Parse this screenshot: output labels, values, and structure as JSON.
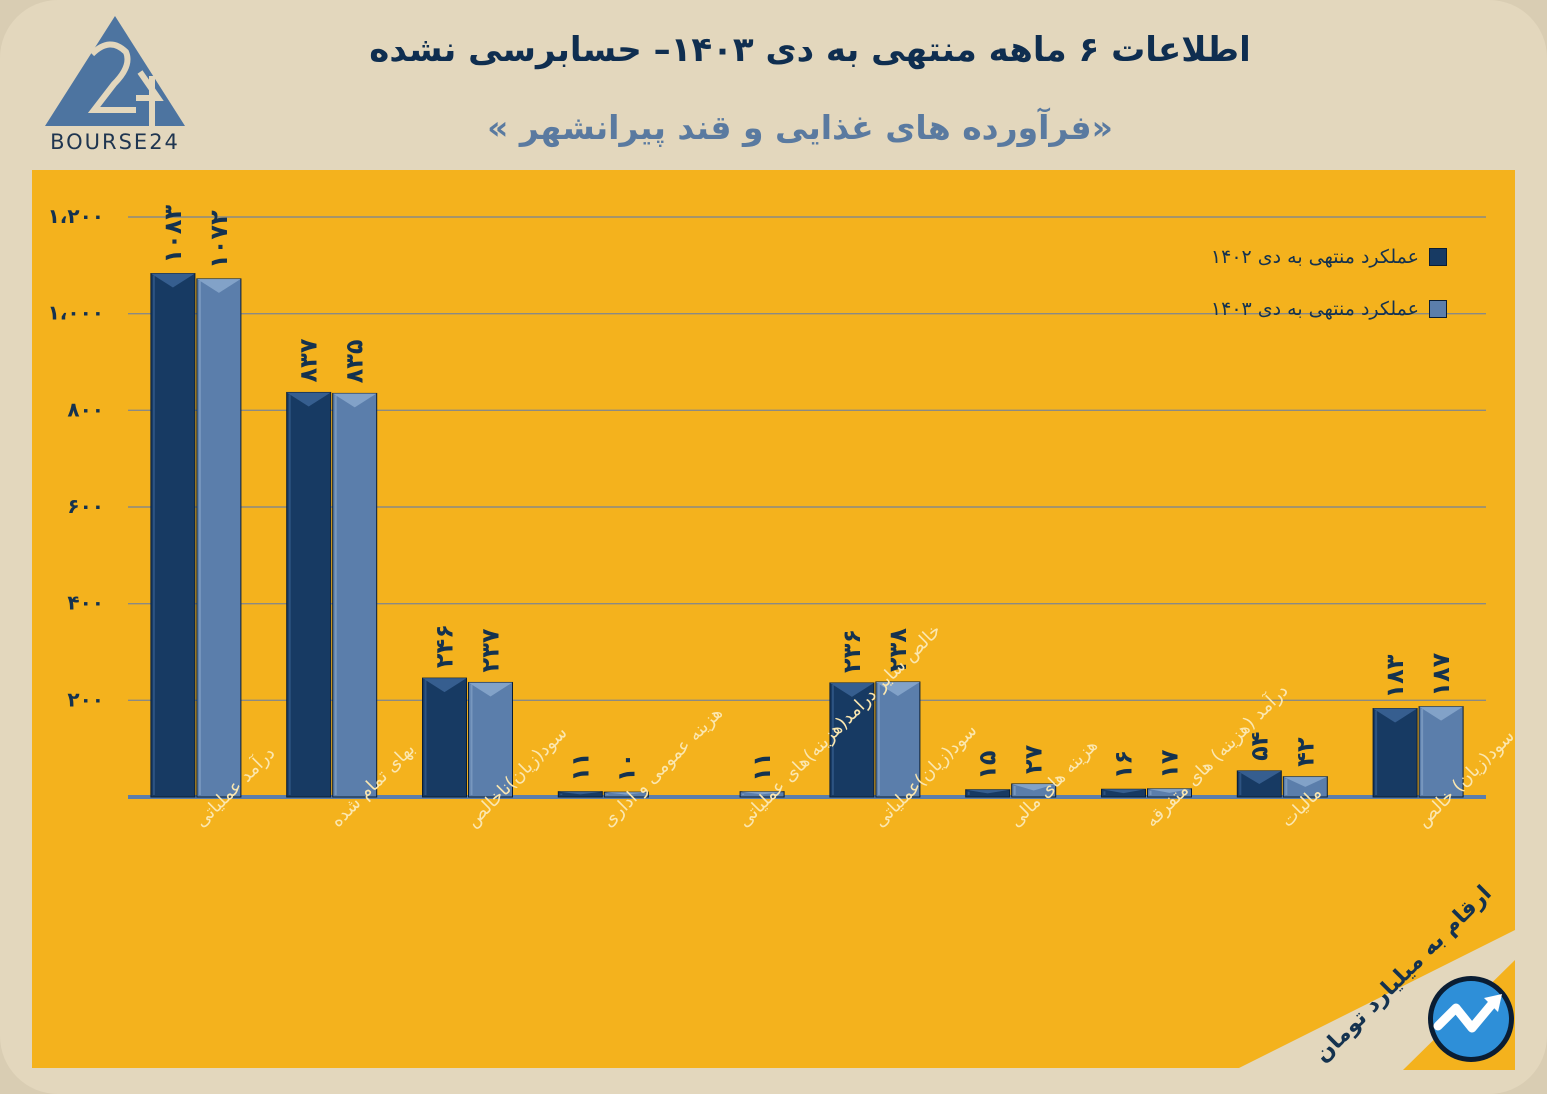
{
  "header": {
    "title": "اطلاعات ۶ ماهه منتهی به دی ۱۴۰۳– حسابرسی نشده",
    "subtitle": "«فرآورده های غذایی و قند پیرانشهر »",
    "logo_text": "BOURSE24"
  },
  "footer": {
    "unit_note": "ارقام به میلیارد تومان"
  },
  "colors": {
    "panel": "#f4b21d",
    "series_1402": "#173a63",
    "series_1403": "#5b7eab"
  },
  "chart_data": {
    "type": "bar",
    "categories": [
      "درآمد عملیاتی",
      "بهای تمام شده",
      "سود(زیان)ناخالص",
      "هزینه عمومی و اداری",
      "خالص سایر درامد(هزینه)های عملیاتی",
      "سود(زیان)عملیاتی",
      "هزینه های مالی",
      "درآمد (هزینه) های متفرقه",
      "مالیات",
      "سود(زیان) خالص"
    ],
    "series": [
      {
        "name": "عملکرد منتهی به دی ۱۴۰۲",
        "values": [
          1083,
          837,
          246,
          11,
          0,
          236,
          15,
          16,
          54,
          183
        ],
        "labels": [
          "۱۰۸۳",
          "۸۳۷",
          "۲۴۶",
          "۱۱",
          "",
          "۲۳۶",
          "۱۵",
          "۱۶",
          "۵۴",
          "۱۸۳"
        ]
      },
      {
        "name": "عملکرد منتهی به دی ۱۴۰۳",
        "values": [
          1072,
          835,
          237,
          10,
          11,
          238,
          27,
          17,
          42,
          187
        ],
        "labels": [
          "۱۰۷۲",
          "۸۳۵",
          "۲۳۷",
          "۱۰",
          "۱۱",
          "۲۳۸",
          "۲۷",
          "۱۷",
          "۴۲",
          "۱۸۷"
        ]
      }
    ],
    "yticks": [
      {
        "value": 200,
        "label": "۲۰۰"
      },
      {
        "value": 400,
        "label": "۴۰۰"
      },
      {
        "value": 600,
        "label": "۶۰۰"
      },
      {
        "value": 800,
        "label": "۸۰۰"
      },
      {
        "value": 1000,
        "label": "۱،۰۰۰"
      },
      {
        "value": 1200,
        "label": "۱،۲۰۰"
      }
    ],
    "ylim": [
      0,
      1200
    ],
    "grid": true,
    "legend_position": "top-right"
  }
}
